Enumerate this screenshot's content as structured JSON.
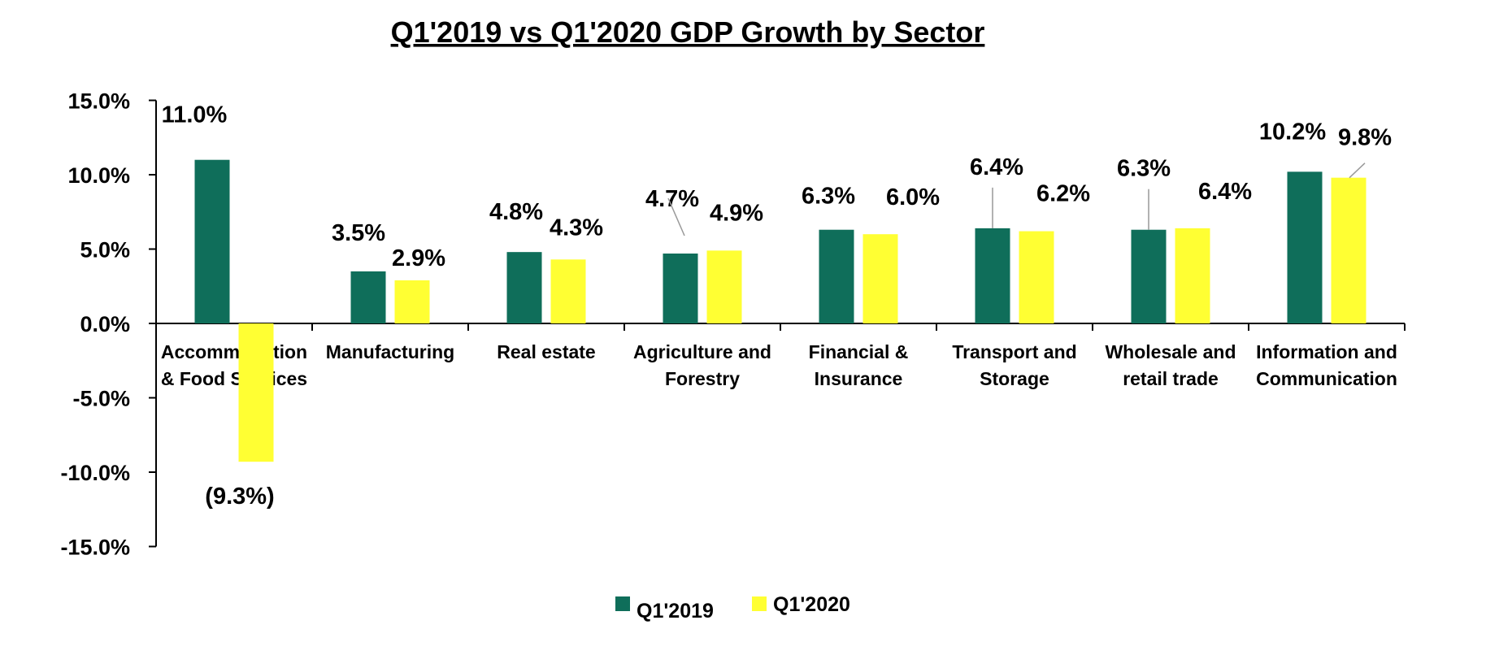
{
  "chart_data": {
    "type": "bar",
    "title": "Q1'2019 vs Q1'2020 GDP Growth by Sector",
    "xlabel": "",
    "ylabel": "",
    "ylim": [
      -15,
      15
    ],
    "yticks": [
      "15.0%",
      "10.0%",
      "5.0%",
      "0.0%",
      "-5.0%",
      "-10.0%",
      "-15.0%"
    ],
    "ytick_values": [
      15,
      10,
      5,
      0,
      -5,
      -10,
      -15
    ],
    "categories": [
      [
        "Accommodation",
        "& Food Services"
      ],
      [
        "Manufacturing"
      ],
      [
        "Real estate"
      ],
      [
        "Agriculture and",
        "Forestry"
      ],
      [
        "Financial &",
        "Insurance"
      ],
      [
        "Transport and",
        "Storage"
      ],
      [
        "Wholesale and",
        "retail trade"
      ],
      [
        "Information and",
        "Communication"
      ]
    ],
    "series": [
      {
        "name": "Q1'2019",
        "color": "#0f6e5a",
        "values": [
          11.0,
          3.5,
          4.8,
          4.7,
          6.3,
          6.4,
          6.3,
          10.2
        ],
        "labels": [
          "11.0%",
          "3.5%",
          "4.8%",
          "4.7%",
          "6.3%",
          "6.4%",
          "6.3%",
          "10.2%"
        ]
      },
      {
        "name": "Q1'2020",
        "color": "#ffff33",
        "values": [
          -9.3,
          2.9,
          4.3,
          4.9,
          6.0,
          6.2,
          6.4,
          9.8
        ],
        "labels": [
          "(9.3%)",
          "2.9%",
          "4.3%",
          "4.9%",
          "6.0%",
          "6.2%",
          "6.4%",
          "9.8%"
        ]
      }
    ],
    "grid": false,
    "legend": "bottom"
  }
}
